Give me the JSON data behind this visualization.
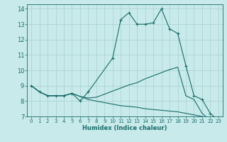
{
  "xlabel": "Humidex (Indice chaleur)",
  "background_color": "#c8eaea",
  "grid_color": "#a8d0d0",
  "line_color": "#1a6b6b",
  "xlim": [
    -0.5,
    23.5
  ],
  "ylim": [
    7,
    14.3
  ],
  "yticks": [
    7,
    8,
    9,
    10,
    11,
    12,
    13,
    14
  ],
  "xticks": [
    0,
    1,
    2,
    3,
    4,
    5,
    6,
    7,
    8,
    9,
    10,
    11,
    12,
    13,
    14,
    15,
    16,
    17,
    18,
    19,
    20,
    21,
    22,
    23
  ],
  "line1_x": [
    0,
    1,
    2,
    3,
    4,
    5,
    6,
    7,
    10,
    11,
    12,
    13,
    14,
    15,
    16,
    17,
    18,
    19,
    20,
    21,
    22,
    23
  ],
  "line1_y": [
    9.0,
    8.6,
    8.35,
    8.35,
    8.35,
    8.5,
    8.0,
    8.6,
    10.8,
    13.3,
    13.75,
    13.0,
    13.0,
    13.1,
    14.0,
    12.7,
    12.4,
    10.3,
    8.35,
    8.1,
    7.2,
    6.75
  ],
  "line2_x": [
    0,
    1,
    2,
    3,
    4,
    5,
    6,
    7,
    8,
    9,
    10,
    11,
    12,
    13,
    14,
    15,
    16,
    17,
    18,
    19,
    20,
    21,
    22,
    23
  ],
  "line2_y": [
    9.0,
    8.6,
    8.35,
    8.35,
    8.35,
    8.5,
    8.3,
    8.2,
    8.25,
    8.45,
    8.65,
    8.85,
    9.05,
    9.2,
    9.45,
    9.65,
    9.85,
    10.05,
    10.2,
    8.35,
    8.1,
    7.2,
    6.75,
    6.7
  ],
  "line3_x": [
    0,
    1,
    2,
    3,
    4,
    5,
    6,
    7,
    8,
    9,
    10,
    11,
    12,
    13,
    14,
    15,
    16,
    17,
    18,
    19,
    20,
    21,
    22,
    23
  ],
  "line3_y": [
    9.0,
    8.6,
    8.35,
    8.35,
    8.35,
    8.5,
    8.3,
    8.1,
    8.0,
    7.9,
    7.8,
    7.7,
    7.65,
    7.6,
    7.5,
    7.45,
    7.4,
    7.35,
    7.3,
    7.2,
    7.1,
    7.0,
    6.85,
    6.75
  ]
}
